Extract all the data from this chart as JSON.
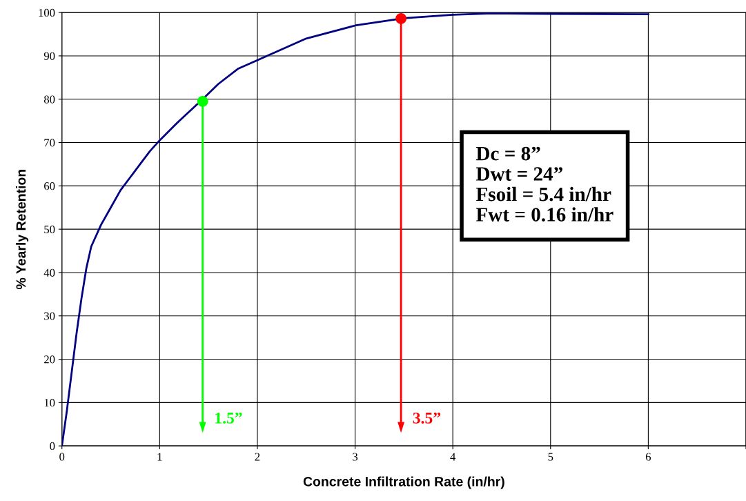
{
  "chart_data": {
    "type": "line",
    "xlabel": "Concrete Infiltration Rate (in/hr)",
    "ylabel": "% Yearly Retention",
    "xlim": [
      0,
      7
    ],
    "xticks": [
      0,
      1,
      2,
      3,
      4,
      5,
      6,
      {
        "value": 7,
        "label": null
      }
    ],
    "ylim": [
      0,
      100
    ],
    "yticks": [
      0,
      10,
      20,
      30,
      40,
      50,
      60,
      70,
      80,
      90,
      100
    ],
    "grid": true,
    "legend": false,
    "series": [
      {
        "color": "#000080",
        "x": [
          0,
          0.05,
          0.1,
          0.15,
          0.2,
          0.25,
          0.3,
          0.4,
          0.5,
          0.6,
          0.7,
          0.8,
          0.9,
          1.0,
          1.2,
          1.44,
          1.6,
          1.8,
          2.0,
          2.5,
          3.0,
          3.5,
          4.0,
          4.4,
          5.0,
          6.0
        ],
        "values": [
          0,
          8,
          17,
          26,
          34,
          41,
          46,
          51,
          55,
          59,
          62,
          65,
          68,
          70.5,
          75,
          80,
          83.5,
          87,
          89,
          94,
          97,
          98.7,
          99.5,
          99.8,
          99.7,
          99.6
        ],
        "marker": "none"
      },
      {
        "type": "scatter",
        "color": "#00ff00",
        "x": [
          1.44
        ],
        "values": [
          79.5
        ],
        "marker": "circle"
      },
      {
        "type": "scatter",
        "color": "#ff0000",
        "x": [
          3.47
        ],
        "values": [
          98.6
        ],
        "marker": "circle"
      }
    ],
    "annotations": [
      "Dc = 8”\nDwt = 24”\nFsoil = 5.4 in/hr\nFwt = 0.16 in/hr",
      "1.5”",
      "3.5”"
    ]
  }
}
